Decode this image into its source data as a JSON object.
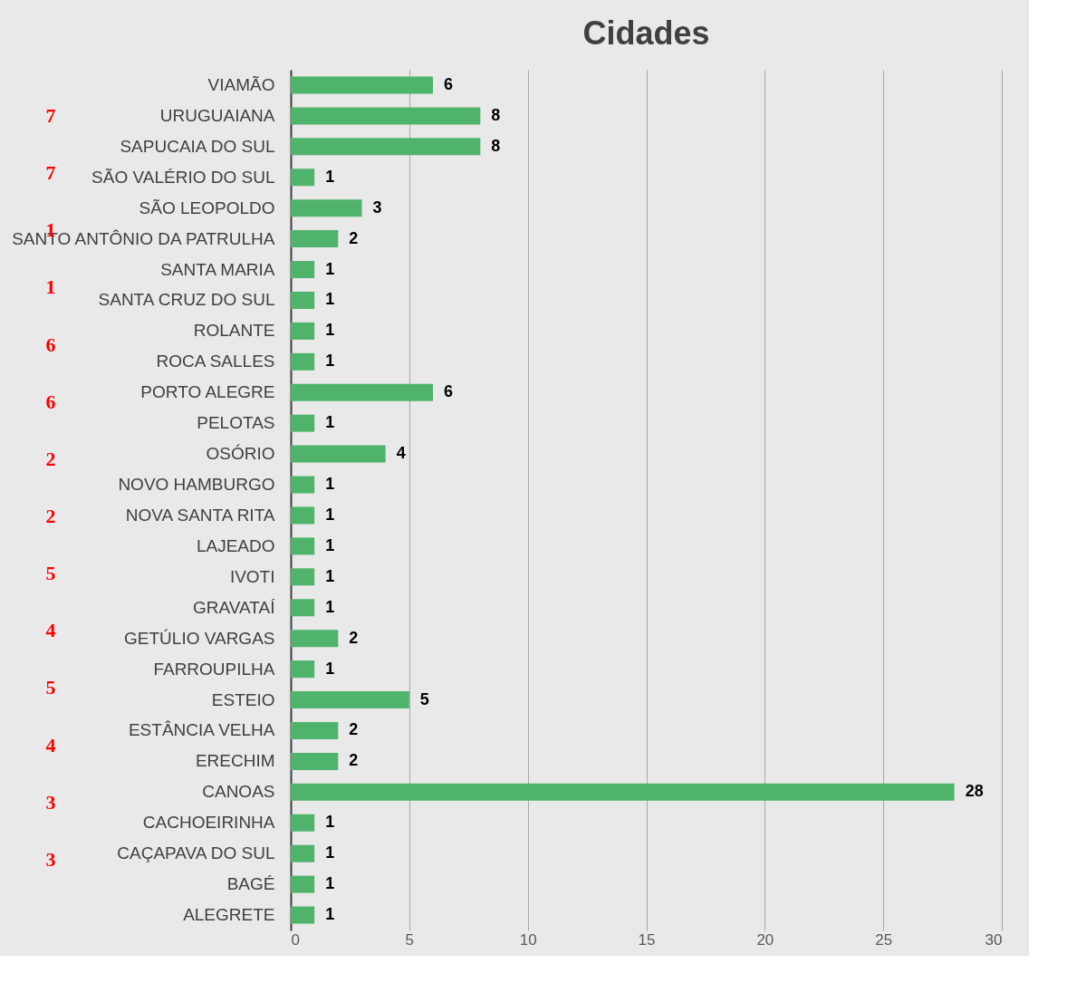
{
  "chart_data": {
    "type": "bar",
    "orientation": "horizontal",
    "title": "Cidades",
    "categories": [
      "VIAMÃO",
      "URUGUAIANA",
      "SAPUCAIA DO SUL",
      "SÃO VALÉRIO DO SUL",
      "SÃO LEOPOLDO",
      "SANTO ANTÔNIO DA PATRULHA",
      "SANTA MARIA",
      "SANTA CRUZ DO SUL",
      "ROLANTE",
      "ROCA SALLES",
      "PORTO ALEGRE",
      "PELOTAS",
      "OSÓRIO",
      "NOVO HAMBURGO",
      "NOVA SANTA RITA",
      "LAJEADO",
      "IVOTI",
      "GRAVATAÍ",
      "GETÚLIO VARGAS",
      "FARROUPILHA",
      "ESTEIO",
      "ESTÂNCIA VELHA",
      "ERECHIM",
      "CANOAS",
      "CACHOEIRINHA",
      "CAÇAPAVA DO SUL",
      "BAGÉ",
      "ALEGRETE"
    ],
    "values": [
      6,
      8,
      8,
      1,
      3,
      2,
      1,
      1,
      1,
      1,
      6,
      1,
      4,
      1,
      1,
      1,
      1,
      1,
      2,
      1,
      5,
      2,
      2,
      28,
      1,
      1,
      1,
      1
    ],
    "color": "#4fb36b",
    "data_labels": true,
    "grid": "x",
    "xlim": [
      0,
      30
    ],
    "xticks": [
      0,
      5,
      10,
      15,
      20,
      25,
      30
    ],
    "annotations": [
      "7",
      "7",
      "1",
      "1",
      "6",
      "6",
      "2",
      "2",
      "5",
      "4",
      "5",
      "4",
      "3",
      "3"
    ]
  }
}
